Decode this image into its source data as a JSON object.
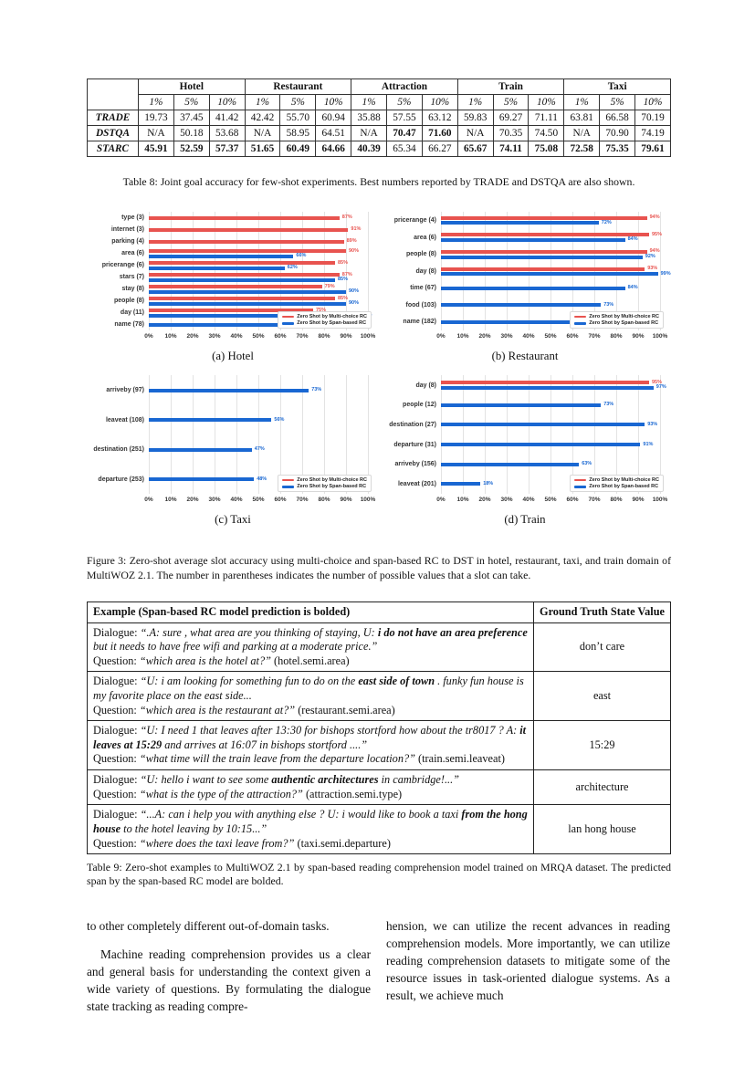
{
  "table8": {
    "caption": "Table 8: Joint goal accuracy for few-shot experiments. Best numbers reported by TRADE and DSTQA are also shown.",
    "groups": [
      "Hotel",
      "Restaurant",
      "Attraction",
      "Train",
      "Taxi"
    ],
    "subheaders": [
      "1%",
      "5%",
      "10%"
    ],
    "rows": [
      {
        "model": "TRADE",
        "cells": [
          {
            "v": "19.73"
          },
          {
            "v": "37.45"
          },
          {
            "v": "41.42"
          },
          {
            "v": "42.42"
          },
          {
            "v": "55.70"
          },
          {
            "v": "60.94"
          },
          {
            "v": "35.88"
          },
          {
            "v": "57.55"
          },
          {
            "v": "63.12"
          },
          {
            "v": "59.83"
          },
          {
            "v": "69.27"
          },
          {
            "v": "71.11"
          },
          {
            "v": "63.81"
          },
          {
            "v": "66.58"
          },
          {
            "v": "70.19"
          }
        ]
      },
      {
        "model": "DSTQA",
        "cells": [
          {
            "v": "N/A"
          },
          {
            "v": "50.18"
          },
          {
            "v": "53.68"
          },
          {
            "v": "N/A"
          },
          {
            "v": "58.95"
          },
          {
            "v": "64.51"
          },
          {
            "v": "N/A"
          },
          {
            "v": "70.47",
            "b": true
          },
          {
            "v": "71.60",
            "b": true
          },
          {
            "v": "N/A"
          },
          {
            "v": "70.35"
          },
          {
            "v": "74.50"
          },
          {
            "v": "N/A"
          },
          {
            "v": "70.90"
          },
          {
            "v": "74.19"
          }
        ]
      },
      {
        "model": "STARC",
        "cells": [
          {
            "v": "45.91",
            "b": true
          },
          {
            "v": "52.59",
            "b": true
          },
          {
            "v": "57.37",
            "b": true
          },
          {
            "v": "51.65",
            "b": true
          },
          {
            "v": "60.49",
            "b": true
          },
          {
            "v": "64.66",
            "b": true
          },
          {
            "v": "40.39",
            "b": true
          },
          {
            "v": "65.34"
          },
          {
            "v": "66.27"
          },
          {
            "v": "65.67",
            "b": true
          },
          {
            "v": "74.11",
            "b": true
          },
          {
            "v": "75.08",
            "b": true
          },
          {
            "v": "72.58",
            "b": true
          },
          {
            "v": "75.35",
            "b": true
          },
          {
            "v": "79.61",
            "b": true
          }
        ]
      }
    ]
  },
  "chart_data": [
    {
      "type": "bar",
      "title": "(a) Hotel",
      "categories": [
        "type (3)",
        "internet (3)",
        "parking (4)",
        "area (6)",
        "pricerange (6)",
        "stars (7)",
        "stay (8)",
        "people (8)",
        "day (11)",
        "name (78)"
      ],
      "series": [
        {
          "name": "Zero Shot by Multi-choice RC",
          "color": "#e8534f",
          "values": [
            87,
            91,
            89,
            90,
            85,
            87,
            79,
            85,
            75,
            null
          ]
        },
        {
          "name": "Zero Shot by Span-based RC",
          "color": "#1967d2",
          "values": [
            null,
            null,
            null,
            66,
            62,
            85,
            90,
            90,
            96,
            62
          ]
        }
      ],
      "xlim": [
        0,
        100
      ],
      "grid": true,
      "legend_position": "bottom-right",
      "xticks": [
        "0%",
        "10%",
        "20%",
        "30%",
        "40%",
        "50%",
        "60%",
        "70%",
        "80%",
        "90%",
        "100%"
      ]
    },
    {
      "type": "bar",
      "title": "(b) Restaurant",
      "categories": [
        "pricerange (4)",
        "area (6)",
        "people (8)",
        "day (8)",
        "time (67)",
        "food (103)",
        "name (182)"
      ],
      "series": [
        {
          "name": "Zero Shot by Multi-choice RC",
          "color": "#e8534f",
          "values": [
            94,
            95,
            94,
            93,
            null,
            null,
            null
          ]
        },
        {
          "name": "Zero Shot by Span-based RC",
          "color": "#1967d2",
          "values": [
            72,
            84,
            92,
            99,
            84,
            73,
            70
          ]
        }
      ],
      "xlim": [
        0,
        100
      ],
      "grid": true,
      "legend_position": "bottom-right",
      "xticks": [
        "0%",
        "10%",
        "20%",
        "30%",
        "40%",
        "50%",
        "60%",
        "70%",
        "80%",
        "90%",
        "100%"
      ]
    },
    {
      "type": "bar",
      "title": "(c) Taxi",
      "categories": [
        "arriveby (97)",
        "leaveat (108)",
        "destination (251)",
        "departure (253)"
      ],
      "series": [
        {
          "name": "Zero Shot by Multi-choice RC",
          "color": "#e8534f",
          "values": [
            null,
            null,
            null,
            null
          ]
        },
        {
          "name": "Zero Shot by Span-based RC",
          "color": "#1967d2",
          "values": [
            73,
            56,
            47,
            48
          ]
        }
      ],
      "xlim": [
        0,
        100
      ],
      "grid": true,
      "legend_position": "bottom-right",
      "xticks": [
        "0%",
        "10%",
        "20%",
        "30%",
        "40%",
        "50%",
        "60%",
        "70%",
        "80%",
        "90%",
        "100%"
      ]
    },
    {
      "type": "bar",
      "title": "(d) Train",
      "categories": [
        "day (8)",
        "people (12)",
        "destination (27)",
        "departure (31)",
        "arriveby (156)",
        "leaveat (201)"
      ],
      "series": [
        {
          "name": "Zero Shot by Multi-choice RC",
          "color": "#e8534f",
          "values": [
            95,
            null,
            null,
            null,
            null,
            null
          ]
        },
        {
          "name": "Zero Shot by Span-based RC",
          "color": "#1967d2",
          "values": [
            97,
            73,
            93,
            91,
            63,
            18
          ]
        }
      ],
      "xlim": [
        0,
        100
      ],
      "grid": true,
      "legend_position": "bottom-right",
      "xticks": [
        "0%",
        "10%",
        "20%",
        "30%",
        "40%",
        "50%",
        "60%",
        "70%",
        "80%",
        "90%",
        "100%"
      ]
    }
  ],
  "figure3": {
    "caption": "Figure 3: Zero-shot average slot accuracy using multi-choice and span-based RC to DST in hotel, restaurant, taxi, and train domain of MultiWOZ 2.1. The number in parentheses indicates the number of possible values that a slot can take."
  },
  "table9": {
    "header": [
      "Example (Span-based RC model prediction is bolded)",
      "Ground Truth State Value"
    ],
    "caption": "Table 9: Zero-shot examples to MultiWOZ 2.1 by span-based reading comprehension model trained on MRQA dataset. The predicted span by the span-based RC model are bolded.",
    "rows": [
      {
        "lines": [
          [
            {
              "t": "Dialogue: ",
              "s": "r"
            },
            {
              "t": "“.A: sure , what area are you thinking of staying, U: ",
              "s": "i"
            },
            {
              "t": "i do not have an area preference",
              "s": "bi"
            },
            {
              "t": " but it needs to have free wifi and parking at a moderate price.”",
              "s": "i"
            }
          ],
          [
            {
              "t": "Question: ",
              "s": "r"
            },
            {
              "t": "“which area is the hotel at?”",
              "s": "i"
            },
            {
              "t": " (hotel.semi.area)",
              "s": "r"
            }
          ]
        ],
        "value": "don’t care"
      },
      {
        "lines": [
          [
            {
              "t": "Dialogue: ",
              "s": "r"
            },
            {
              "t": "“U: i am looking for something fun to do on the ",
              "s": "i"
            },
            {
              "t": "east side of town",
              "s": "bi"
            },
            {
              "t": " . funky fun house is my favorite place on the east side...",
              "s": "i"
            }
          ],
          [
            {
              "t": "Question: ",
              "s": "r"
            },
            {
              "t": "“which area is the restaurant at?”",
              "s": "i"
            },
            {
              "t": " (restaurant.semi.area)",
              "s": "r"
            }
          ]
        ],
        "value": "east"
      },
      {
        "lines": [
          [
            {
              "t": "Dialogue: ",
              "s": "r"
            },
            {
              "t": "“U: I need 1 that leaves after 13:30 for bishops stortford how about the tr8017 ? A: ",
              "s": "i"
            },
            {
              "t": "it leaves at 15:29",
              "s": "bi"
            },
            {
              "t": " and arrives at 16:07 in bishops stortford ....”",
              "s": "i"
            }
          ],
          [
            {
              "t": "Question: ",
              "s": "r"
            },
            {
              "t": "“what time will the train leave from the departure location?”",
              "s": "i"
            },
            {
              "t": " (train.semi.leaveat)",
              "s": "r"
            }
          ]
        ],
        "value": "15:29"
      },
      {
        "lines": [
          [
            {
              "t": "Dialogue: ",
              "s": "r"
            },
            {
              "t": "“U: hello i want to see some ",
              "s": "i"
            },
            {
              "t": "authentic architectures",
              "s": "bi"
            },
            {
              "t": " in cambridge!...”",
              "s": "i"
            }
          ],
          [
            {
              "t": "Question: ",
              "s": "r"
            },
            {
              "t": "“what is the type of the attraction?”",
              "s": "i"
            },
            {
              "t": " (attraction.semi.type)",
              "s": "r"
            }
          ]
        ],
        "value": "architecture"
      },
      {
        "lines": [
          [
            {
              "t": "Dialogue: ",
              "s": "r"
            },
            {
              "t": "“...A: can i help you with anything else ? U: i would like to book a taxi ",
              "s": "i"
            },
            {
              "t": "from the hong house",
              "s": "bi"
            },
            {
              "t": " to the hotel leaving by 10:15...”",
              "s": "i"
            }
          ],
          [
            {
              "t": "Question: ",
              "s": "r"
            },
            {
              "t": "“where does the taxi leave from?”",
              "s": "i"
            },
            {
              "t": " (taxi.semi.departure)",
              "s": "r"
            }
          ]
        ],
        "value": "lan hong house"
      }
    ]
  },
  "body": {
    "left": [
      "to other completely different out-of-domain tasks.",
      "Machine reading comprehension provides us a clear and general basis for understanding the context given a wide variety of questions. By formulating the dialogue state tracking as reading compre-"
    ],
    "right": [
      "hension, we can utilize the recent advances in reading comprehension models. More importantly, we can utilize reading comprehension datasets to mitigate some of the resource issues in task-oriented dialogue systems. As a result, we achieve much"
    ]
  }
}
